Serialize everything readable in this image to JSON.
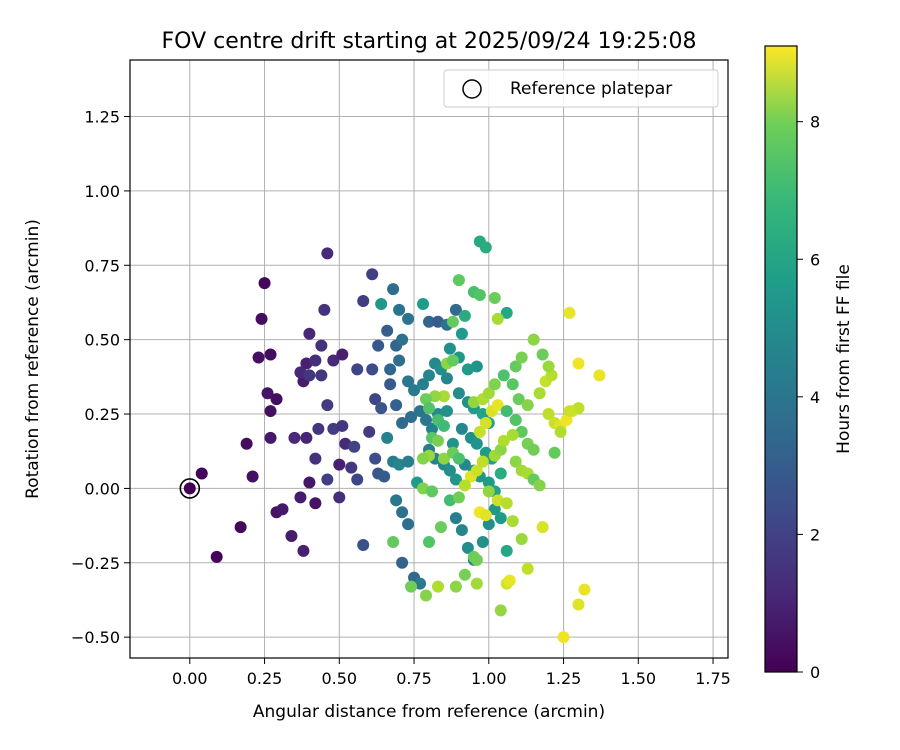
{
  "chart_data": {
    "type": "scatter",
    "title": "FOV centre drift starting at 2025/09/24 19:25:08",
    "xlabel": "Angular distance from reference (arcmin)",
    "ylabel": "Rotation from reference (arcmin)",
    "xlim": [
      -0.2,
      1.8
    ],
    "ylim": [
      -0.57,
      1.44
    ],
    "xticks": [
      "0.00",
      "0.25",
      "0.50",
      "0.75",
      "1.00",
      "1.25",
      "1.50",
      "1.75"
    ],
    "xtick_values": [
      0,
      0.25,
      0.5,
      0.75,
      1.0,
      1.25,
      1.5,
      1.75
    ],
    "yticks": [
      "−0.50",
      "−0.25",
      "0.00",
      "0.25",
      "0.50",
      "0.75",
      "1.00",
      "1.25"
    ],
    "ytick_values": [
      -0.5,
      -0.25,
      0,
      0.25,
      0.5,
      0.75,
      1.0,
      1.25
    ],
    "grid": true,
    "legend": {
      "position": "top-right",
      "entries": [
        "Reference platepar"
      ]
    },
    "colorbar": {
      "label": "Hours from first FF file",
      "colormap": "viridis",
      "range": [
        0,
        9.1
      ],
      "ticks": [
        "0",
        "2",
        "4",
        "6",
        "8"
      ],
      "tick_values": [
        0,
        2,
        4,
        6,
        8
      ]
    },
    "reference_point": {
      "x": 0.0,
      "y": 0.0
    },
    "points": [
      [
        0.04,
        0.05,
        0.1
      ],
      [
        0.09,
        -0.23,
        0.1
      ],
      [
        0.17,
        -0.13,
        0.2
      ],
      [
        0.19,
        0.15,
        0.3
      ],
      [
        0.21,
        0.04,
        0.4
      ],
      [
        0.24,
        0.57,
        0.3
      ],
      [
        0.25,
        0.69,
        0.2
      ],
      [
        0.23,
        0.44,
        0.4
      ],
      [
        0.27,
        0.45,
        0.3
      ],
      [
        0.26,
        0.32,
        0.5
      ],
      [
        0.27,
        0.26,
        0.4
      ],
      [
        0.29,
        0.3,
        0.3
      ],
      [
        0.27,
        0.17,
        0.6
      ],
      [
        0.29,
        -0.08,
        0.5
      ],
      [
        0.31,
        -0.07,
        0.6
      ],
      [
        0.34,
        -0.16,
        0.7
      ],
      [
        0.37,
        -0.03,
        0.7
      ],
      [
        0.38,
        -0.21,
        0.8
      ],
      [
        0.4,
        0.02,
        0.6
      ],
      [
        0.42,
        -0.05,
        0.5
      ],
      [
        0.38,
        0.36,
        0.7
      ],
      [
        0.39,
        0.42,
        0.8
      ],
      [
        0.4,
        0.52,
        1.0
      ],
      [
        0.42,
        0.43,
        1.2
      ],
      [
        0.45,
        0.6,
        1.3
      ],
      [
        0.46,
        0.79,
        1.1
      ],
      [
        0.44,
        0.48,
        1.3
      ],
      [
        0.48,
        0.43,
        1.1
      ],
      [
        0.51,
        0.45,
        0.8
      ],
      [
        0.37,
        0.39,
        1.0
      ],
      [
        0.4,
        0.38,
        1.4
      ],
      [
        0.44,
        0.38,
        1.5
      ],
      [
        0.46,
        0.28,
        1.6
      ],
      [
        0.35,
        0.17,
        1.0
      ],
      [
        0.39,
        0.17,
        0.9
      ],
      [
        0.43,
        0.2,
        1.4
      ],
      [
        0.48,
        0.2,
        1.6
      ],
      [
        0.51,
        0.21,
        1.5
      ],
      [
        0.42,
        0.1,
        1.3
      ],
      [
        0.46,
        0.03,
        1.7
      ],
      [
        0.5,
        0.08,
        0.8
      ],
      [
        0.52,
        0.15,
        1.1
      ],
      [
        0.55,
        0.14,
        1.8
      ],
      [
        0.5,
        -0.03,
        1.2
      ],
      [
        0.54,
        0.07,
        1.5
      ],
      [
        0.56,
        0.03,
        1.9
      ],
      [
        0.58,
        -0.19,
        2.3
      ],
      [
        0.56,
        0.4,
        1.9
      ],
      [
        0.58,
        0.63,
        1.6
      ],
      [
        0.61,
        0.72,
        1.7
      ],
      [
        0.6,
        0.19,
        1.6
      ],
      [
        0.62,
        0.3,
        1.9
      ],
      [
        0.61,
        0.4,
        2.1
      ],
      [
        0.63,
        0.48,
        2.5
      ],
      [
        0.64,
        0.62,
        4.8
      ],
      [
        0.66,
        0.53,
        2.7
      ],
      [
        0.68,
        0.67,
        3.2
      ],
      [
        0.7,
        0.6,
        3.5
      ],
      [
        0.73,
        0.57,
        3.5
      ],
      [
        0.69,
        0.48,
        2.9
      ],
      [
        0.67,
        0.4,
        3.0
      ],
      [
        0.7,
        0.43,
        3.3
      ],
      [
        0.71,
        0.5,
        3.4
      ],
      [
        0.73,
        0.36,
        3.6
      ],
      [
        0.75,
        0.33,
        3.7
      ],
      [
        0.67,
        0.35,
        2.6
      ],
      [
        0.69,
        0.28,
        2.8
      ],
      [
        0.71,
        0.22,
        3.1
      ],
      [
        0.74,
        0.24,
        3.2
      ],
      [
        0.77,
        0.26,
        3.5
      ],
      [
        0.64,
        0.27,
        2.4
      ],
      [
        0.66,
        0.17,
        4.0
      ],
      [
        0.68,
        0.09,
        3.8
      ],
      [
        0.7,
        0.08,
        4.1
      ],
      [
        0.73,
        0.09,
        3.9
      ],
      [
        0.62,
        0.1,
        2.2
      ],
      [
        0.63,
        0.05,
        2.5
      ],
      [
        0.65,
        0.04,
        2.6
      ],
      [
        0.69,
        -0.04,
        3.6
      ],
      [
        0.71,
        -0.08,
        3.4
      ],
      [
        0.73,
        -0.12,
        3.3
      ],
      [
        0.71,
        -0.25,
        2.9
      ],
      [
        0.75,
        -0.3,
        3.1
      ],
      [
        0.77,
        -0.32,
        3.7
      ],
      [
        0.76,
        0.02,
        5.0
      ],
      [
        0.78,
        0.35,
        3.9
      ],
      [
        0.8,
        0.38,
        4.1
      ],
      [
        0.82,
        0.42,
        4.3
      ],
      [
        0.84,
        0.4,
        4.5
      ],
      [
        0.86,
        0.37,
        4.2
      ],
      [
        0.79,
        0.23,
        3.6
      ],
      [
        0.81,
        0.2,
        4.0
      ],
      [
        0.83,
        0.25,
        4.4
      ],
      [
        0.86,
        0.26,
        4.6
      ],
      [
        0.88,
        0.15,
        4.7
      ],
      [
        0.8,
        0.13,
        3.8
      ],
      [
        0.82,
        0.1,
        4.1
      ],
      [
        0.85,
        0.08,
        4.3
      ],
      [
        0.87,
        0.06,
        4.5
      ],
      [
        0.89,
        0.03,
        4.8
      ],
      [
        0.78,
        0.62,
        5.0
      ],
      [
        0.8,
        0.56,
        3.0
      ],
      [
        0.83,
        0.56,
        2.7
      ],
      [
        0.86,
        0.55,
        3.4
      ],
      [
        0.89,
        0.6,
        3.1
      ],
      [
        0.91,
        0.52,
        4.9
      ],
      [
        0.87,
        0.47,
        4.6
      ],
      [
        0.9,
        0.44,
        4.8
      ],
      [
        0.93,
        0.4,
        5.0
      ],
      [
        0.96,
        0.41,
        4.7
      ],
      [
        0.9,
        0.32,
        4.4
      ],
      [
        0.93,
        0.29,
        4.6
      ],
      [
        0.95,
        0.27,
        4.9
      ],
      [
        0.98,
        0.25,
        5.2
      ],
      [
        1.0,
        0.22,
        5.3
      ],
      [
        0.91,
        0.2,
        4.2
      ],
      [
        0.94,
        0.17,
        4.5
      ],
      [
        0.96,
        0.15,
        4.7
      ],
      [
        0.99,
        0.12,
        4.9
      ],
      [
        1.01,
        0.1,
        5.1
      ],
      [
        0.92,
        0.08,
        4.3
      ],
      [
        0.95,
        0.06,
        4.6
      ],
      [
        0.97,
        0.04,
        4.8
      ],
      [
        1.0,
        0.02,
        5.0
      ],
      [
        1.02,
        -0.01,
        5.2
      ],
      [
        0.89,
        -0.1,
        3.9
      ],
      [
        0.91,
        -0.14,
        4.2
      ],
      [
        0.93,
        -0.2,
        4.4
      ],
      [
        0.95,
        -0.24,
        4.1
      ],
      [
        0.98,
        -0.18,
        4.6
      ],
      [
        1.0,
        -0.12,
        4.5
      ],
      [
        1.02,
        -0.07,
        4.8
      ],
      [
        1.04,
        -0.1,
        5.0
      ],
      [
        1.06,
        -0.21,
        5.4
      ],
      [
        1.04,
        0.05,
        5.6
      ],
      [
        0.97,
        0.83,
        5.5
      ],
      [
        0.99,
        0.81,
        5.6
      ],
      [
        0.95,
        0.66,
        6.4
      ],
      [
        0.97,
        0.65,
        6.6
      ],
      [
        1.02,
        0.64,
        7.0
      ],
      [
        0.9,
        0.7,
        6.8
      ],
      [
        0.92,
        0.58,
        5.6
      ],
      [
        1.06,
        0.59,
        5.4
      ],
      [
        1.03,
        0.57,
        7.9
      ],
      [
        0.88,
        0.56,
        6.9
      ],
      [
        0.86,
        0.42,
        7.5
      ],
      [
        0.88,
        0.43,
        6.9
      ],
      [
        0.85,
        0.31,
        7.9
      ],
      [
        0.82,
        0.31,
        7.6
      ],
      [
        0.79,
        0.3,
        7.0
      ],
      [
        0.8,
        0.27,
        6.6
      ],
      [
        0.83,
        0.23,
        6.4
      ],
      [
        0.85,
        0.21,
        6.2
      ],
      [
        0.81,
        0.17,
        6.7
      ],
      [
        0.83,
        0.16,
        7.2
      ],
      [
        0.8,
        0.11,
        7.7
      ],
      [
        0.78,
        0.1,
        7.4
      ],
      [
        0.85,
        0.1,
        7.5
      ],
      [
        0.88,
        0.12,
        7.0
      ],
      [
        0.9,
        0.1,
        6.5
      ],
      [
        0.78,
        0.0,
        7.3
      ],
      [
        0.81,
        -0.01,
        6.8
      ],
      [
        0.84,
        -0.13,
        7.0
      ],
      [
        0.87,
        -0.04,
        6.3
      ],
      [
        0.9,
        -0.03,
        7.1
      ],
      [
        0.68,
        -0.18,
        6.9
      ],
      [
        0.74,
        -0.33,
        7.1
      ],
      [
        0.79,
        -0.36,
        7.4
      ],
      [
        0.8,
        -0.18,
        6.6
      ],
      [
        0.83,
        -0.33,
        8.0
      ],
      [
        0.89,
        -0.33,
        7.5
      ],
      [
        0.96,
        -0.32,
        7.8
      ],
      [
        1.04,
        -0.41,
        7.6
      ],
      [
        1.06,
        -0.32,
        8.5
      ],
      [
        1.07,
        -0.31,
        8.8
      ],
      [
        0.92,
        -0.29,
        7.2
      ],
      [
        0.95,
        -0.23,
        7.0
      ],
      [
        1.08,
        -0.11,
        7.9
      ],
      [
        1.11,
        -0.17,
        7.7
      ],
      [
        1.13,
        -0.27,
        8.2
      ],
      [
        1.18,
        -0.13,
        8.6
      ],
      [
        0.97,
        -0.08,
        8.9
      ],
      [
        0.99,
        -0.09,
        8.7
      ],
      [
        1.03,
        -0.04,
        8.4
      ],
      [
        1.06,
        -0.05,
        8.1
      ],
      [
        0.94,
        0.04,
        8.7
      ],
      [
        0.96,
        0.06,
        8.4
      ],
      [
        0.98,
        0.09,
        8.2
      ],
      [
        1.02,
        0.11,
        7.8
      ],
      [
        1.04,
        0.13,
        7.5
      ],
      [
        1.05,
        0.16,
        8.0
      ],
      [
        0.97,
        0.19,
        8.3
      ],
      [
        0.99,
        0.22,
        8.5
      ],
      [
        1.01,
        0.26,
        8.6
      ],
      [
        1.03,
        0.28,
        8.8
      ],
      [
        0.95,
        0.29,
        7.6
      ],
      [
        0.98,
        0.3,
        8.0
      ],
      [
        1.0,
        0.32,
        7.8
      ],
      [
        1.02,
        0.35,
        7.3
      ],
      [
        1.05,
        0.38,
        6.5
      ],
      [
        1.09,
        0.41,
        6.9
      ],
      [
        1.11,
        0.44,
        7.2
      ],
      [
        1.08,
        0.35,
        6.7
      ],
      [
        1.1,
        0.3,
        7.0
      ],
      [
        1.13,
        0.28,
        7.4
      ],
      [
        1.06,
        0.26,
        6.3
      ],
      [
        1.09,
        0.23,
        6.6
      ],
      [
        1.11,
        0.19,
        6.8
      ],
      [
        1.13,
        0.15,
        7.2
      ],
      [
        1.15,
        0.13,
        7.1
      ],
      [
        1.09,
        0.09,
        7.5
      ],
      [
        1.11,
        0.06,
        7.8
      ],
      [
        1.13,
        0.05,
        7.9
      ],
      [
        1.15,
        0.03,
        6.9
      ],
      [
        1.17,
        0.01,
        7.4
      ],
      [
        1.19,
        0.36,
        8.3
      ],
      [
        1.21,
        0.38,
        8.1
      ],
      [
        1.17,
        0.32,
        7.9
      ],
      [
        1.2,
        0.25,
        8.2
      ],
      [
        1.22,
        0.22,
        8.4
      ],
      [
        1.24,
        0.21,
        8.7
      ],
      [
        1.26,
        0.23,
        8.9
      ],
      [
        1.28,
        0.26,
        8.6
      ],
      [
        1.3,
        0.27,
        8.2
      ],
      [
        1.24,
        0.19,
        8.0
      ],
      [
        1.15,
        0.5,
        7.5
      ],
      [
        1.18,
        0.45,
        7.0
      ],
      [
        1.2,
        0.41,
        7.7
      ],
      [
        1.27,
        0.59,
        8.8
      ],
      [
        1.3,
        0.42,
        8.9
      ],
      [
        1.37,
        0.38,
        8.8
      ],
      [
        1.22,
        0.12,
        6.9
      ],
      [
        1.27,
        0.26,
        8.4
      ],
      [
        1.3,
        -0.39,
        8.7
      ],
      [
        1.32,
        -0.34,
        8.8
      ],
      [
        1.25,
        -0.5,
        8.9
      ],
      [
        0.96,
        -0.24,
        7.1
      ],
      [
        1.0,
        -0.01,
        7.6
      ],
      [
        0.92,
        0.01,
        8.1
      ],
      [
        1.08,
        0.18,
        7.9
      ]
    ]
  }
}
